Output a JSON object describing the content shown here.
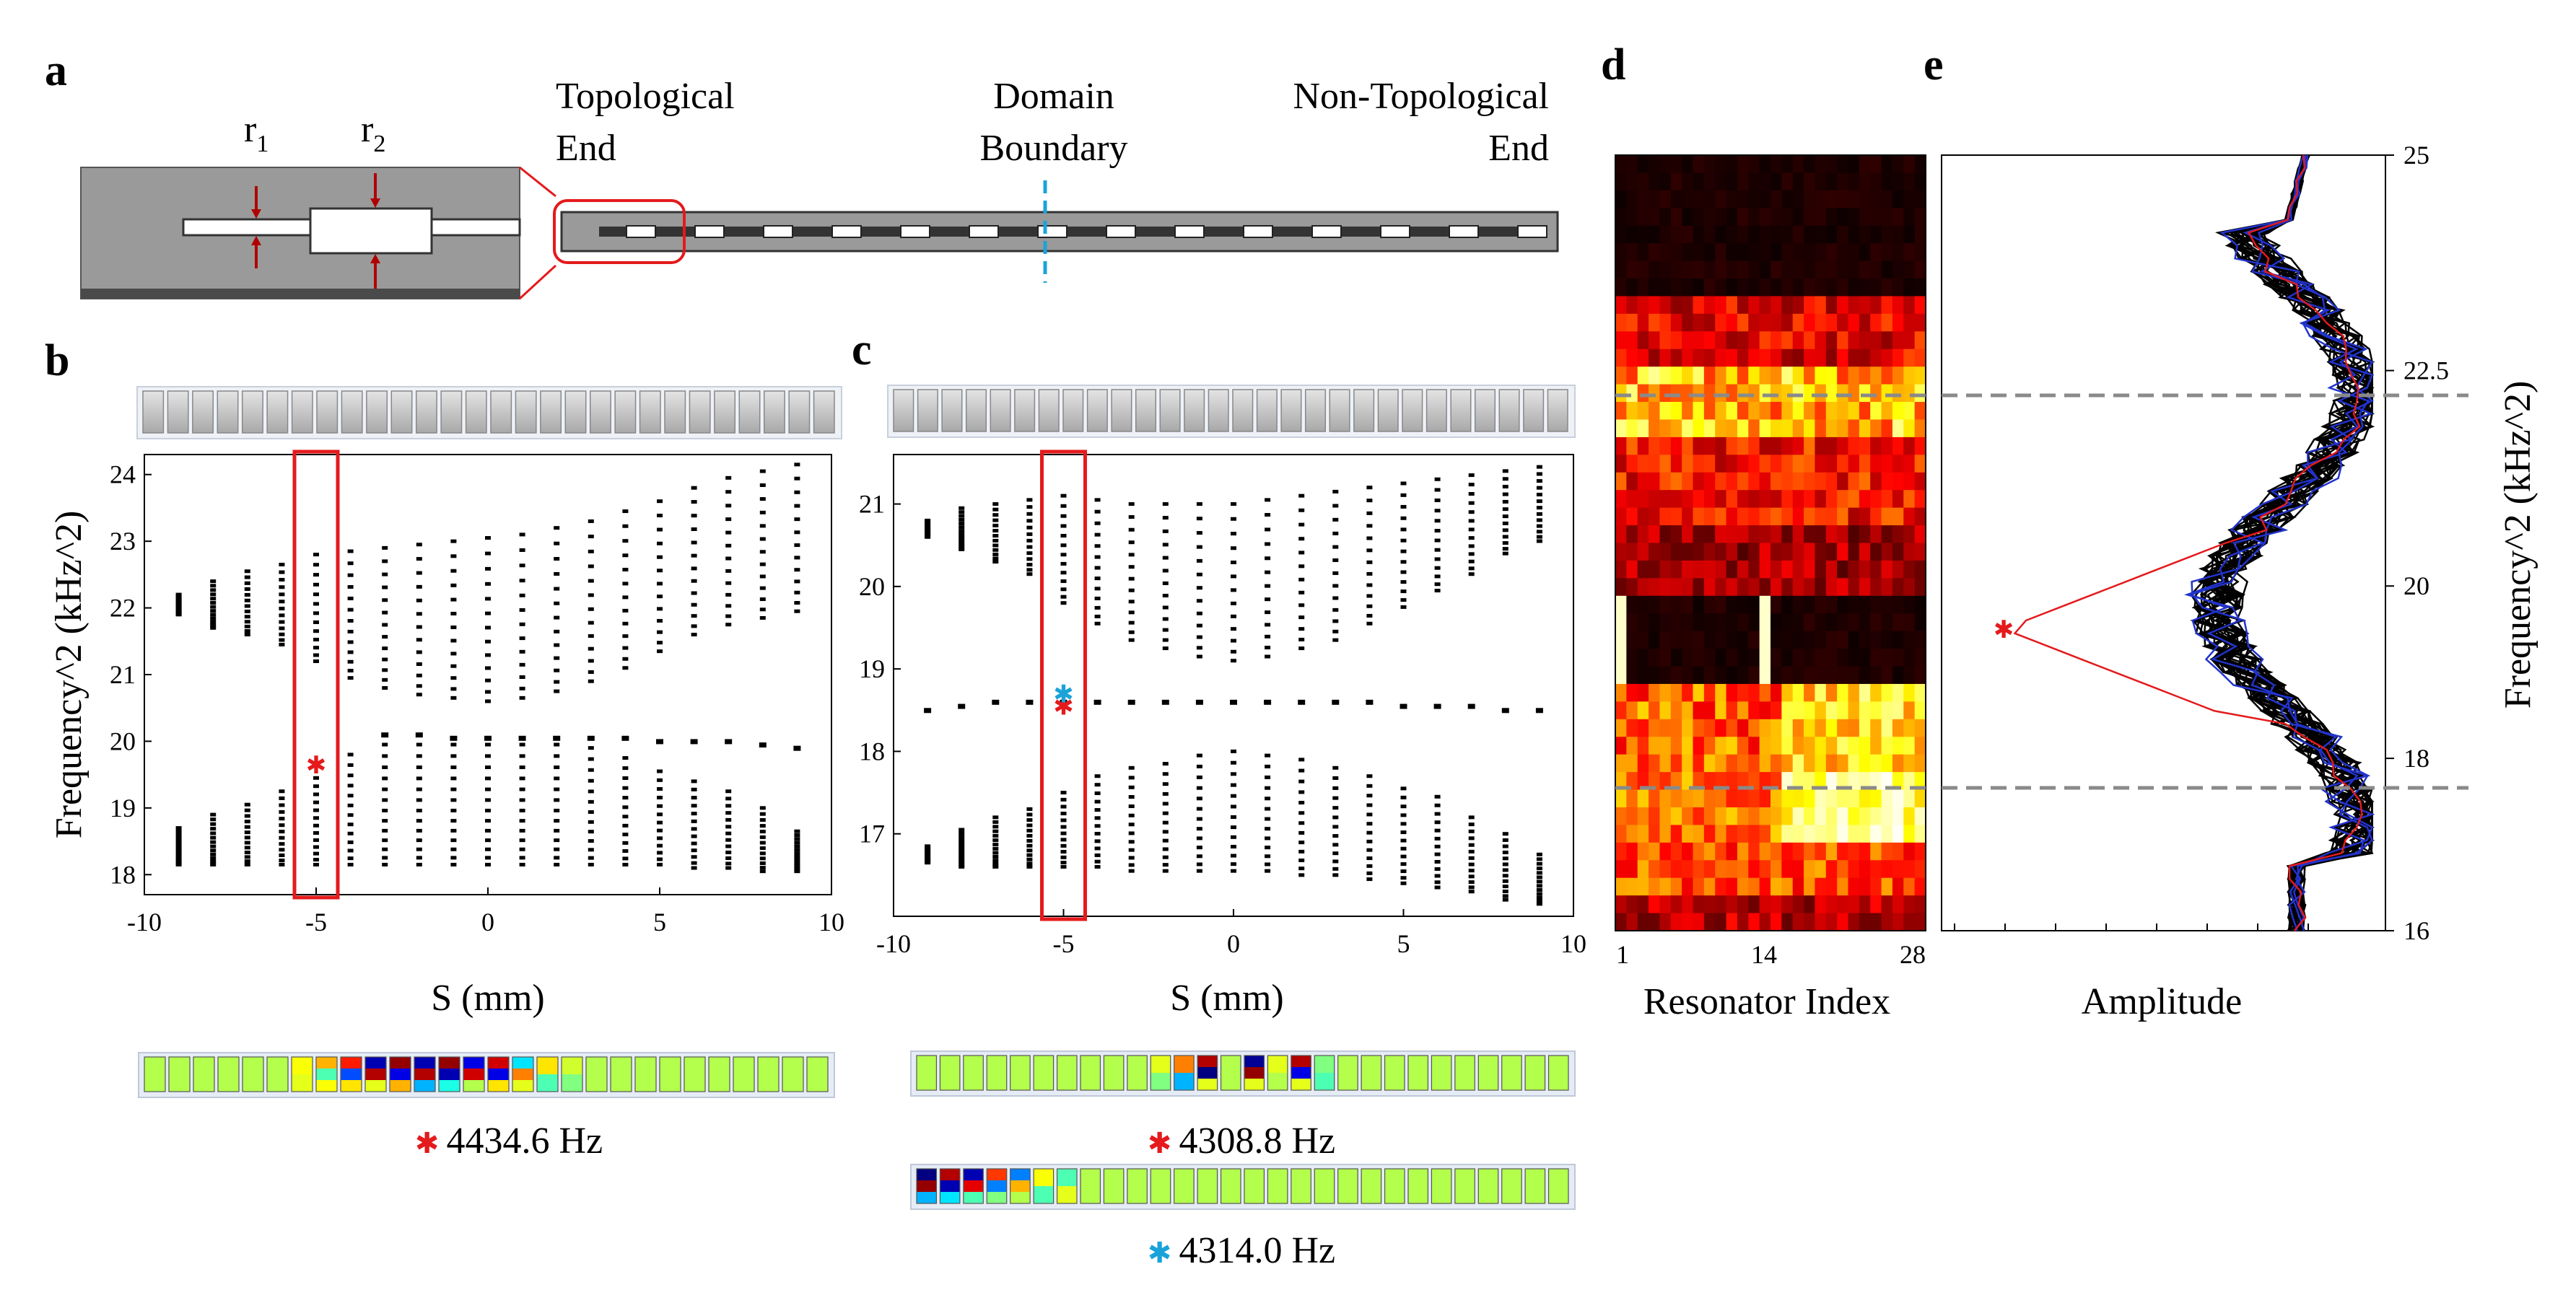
{
  "panels": {
    "a": "a",
    "b": "b",
    "c": "c",
    "d": "d",
    "e": "e"
  },
  "panel_a": {
    "r1_base": "r",
    "r1_sub": "1",
    "r2_base": "r",
    "r2_sub": "2",
    "topological_end": [
      "Topological",
      "End"
    ],
    "domain_boundary": [
      "Domain",
      "Boundary"
    ],
    "non_topological_end": [
      "Non-Topological",
      "End"
    ]
  },
  "panel_b": {
    "caption": "4434.6 Hz",
    "caption_marker_color": "#e41a1c"
  },
  "panel_c": {
    "caption_red": "4308.8 Hz",
    "caption_blue": "4314.0 Hz",
    "marker_red": "#e41a1c",
    "marker_blue": "#1ba3d9"
  },
  "panel_d": {
    "xlabel": "Resonator Index",
    "xticks": [
      "1",
      "14",
      "28"
    ],
    "colormap": "hot"
  },
  "panel_e": {
    "xlabel": "Amplitude",
    "ylabel": "Frequency^2 (kHz^2)",
    "yticks": [
      "25",
      "22.5",
      "20",
      "18",
      "16"
    ],
    "dashed_levels": [
      22,
      17.5
    ]
  },
  "chart_data": [
    {
      "id": "b",
      "type": "scatter",
      "title": "",
      "xlabel": "S  (mm)",
      "ylabel": "Frequency^2 (kHz^2)",
      "xlim": [
        -10,
        10
      ],
      "ylim": [
        17.7,
        24.3
      ],
      "xticks": [
        -10,
        -5,
        0,
        5,
        10
      ],
      "yticks": [
        18,
        19,
        20,
        21,
        22,
        23,
        24
      ],
      "highlight_column_x": -5,
      "marker_point": {
        "x": -5,
        "y": 19.65,
        "color": "#e41a1c"
      },
      "series": [
        {
          "x": [
            -9,
            -8,
            -7,
            -6,
            -5,
            -4,
            -3,
            -2,
            -1,
            0,
            1,
            2,
            3,
            4,
            5,
            6,
            7,
            8,
            9
          ],
          "lower_band": [
            [
              18.15,
              18.7
            ],
            [
              18.15,
              18.9
            ],
            [
              18.15,
              19.05
            ],
            [
              18.15,
              19.25
            ],
            [
              18.15,
              19.45
            ],
            [
              18.15,
              19.8
            ],
            [
              18.15,
              19.95
            ],
            [
              18.15,
              19.95
            ],
            [
              18.15,
              19.95
            ],
            [
              18.15,
              19.95
            ],
            [
              18.15,
              19.95
            ],
            [
              18.15,
              19.95
            ],
            [
              18.15,
              19.9
            ],
            [
              18.15,
              19.75
            ],
            [
              18.15,
              19.55
            ],
            [
              18.1,
              19.4
            ],
            [
              18.1,
              19.25
            ],
            [
              18.05,
              19.0
            ],
            [
              18.05,
              18.65
            ]
          ],
          "mid_state": [
            null,
            null,
            null,
            null,
            null,
            null,
            20.1,
            20.1,
            20.05,
            20.05,
            20.05,
            20.05,
            20.05,
            20.05,
            20.0,
            20.0,
            20.0,
            19.95,
            19.9
          ],
          "upper_band": [
            [
              21.9,
              22.2
            ],
            [
              21.7,
              22.4
            ],
            [
              21.6,
              22.55
            ],
            [
              21.45,
              22.65
            ],
            [
              21.2,
              22.8
            ],
            [
              20.95,
              22.85
            ],
            [
              20.8,
              22.9
            ],
            [
              20.7,
              22.95
            ],
            [
              20.65,
              23.0
            ],
            [
              20.6,
              23.05
            ],
            [
              20.65,
              23.1
            ],
            [
              20.75,
              23.2
            ],
            [
              20.9,
              23.3
            ],
            [
              21.1,
              23.45
            ],
            [
              21.35,
              23.6
            ],
            [
              21.6,
              23.8
            ],
            [
              21.75,
              23.95
            ],
            [
              21.85,
              24.05
            ],
            [
              21.95,
              24.15
            ]
          ]
        }
      ]
    },
    {
      "id": "c",
      "type": "scatter",
      "title": "",
      "xlabel": "S  (mm)",
      "ylabel": "",
      "xlim": [
        -10,
        10
      ],
      "ylim": [
        16,
        21.6
      ],
      "xticks": [
        -10,
        -5,
        0,
        5,
        10
      ],
      "yticks": [
        17,
        18,
        19,
        20,
        21
      ],
      "highlight_column_x": -5,
      "marker_points": [
        {
          "x": -5,
          "y": 18.55,
          "color": "#e41a1c"
        },
        {
          "x": -5,
          "y": 18.7,
          "color": "#1ba3d9"
        }
      ],
      "series": [
        {
          "x": [
            -9,
            -8,
            -7,
            -6,
            -5,
            -4,
            -3,
            -2,
            -1,
            0,
            1,
            2,
            3,
            4,
            5,
            6,
            7,
            8,
            9
          ],
          "lower_band": [
            [
              16.65,
              16.85
            ],
            [
              16.6,
              17.05
            ],
            [
              16.6,
              17.2
            ],
            [
              16.6,
              17.3
            ],
            [
              16.6,
              17.5
            ],
            [
              16.6,
              17.7
            ],
            [
              16.55,
              17.8
            ],
            [
              16.55,
              17.85
            ],
            [
              16.55,
              17.95
            ],
            [
              16.55,
              18.0
            ],
            [
              16.55,
              17.95
            ],
            [
              16.5,
              17.9
            ],
            [
              16.5,
              17.8
            ],
            [
              16.45,
              17.7
            ],
            [
              16.4,
              17.55
            ],
            [
              16.35,
              17.45
            ],
            [
              16.3,
              17.2
            ],
            [
              16.2,
              17.0
            ],
            [
              16.15,
              16.75
            ]
          ],
          "mid_state": [
            18.5,
            18.55,
            18.6,
            18.6,
            18.6,
            18.6,
            18.6,
            18.6,
            18.6,
            18.6,
            18.6,
            18.6,
            18.6,
            18.6,
            18.55,
            18.55,
            18.55,
            18.5,
            18.5
          ],
          "upper_band": [
            [
              20.6,
              20.8
            ],
            [
              20.45,
              20.95
            ],
            [
              20.3,
              21.0
            ],
            [
              20.15,
              21.05
            ],
            [
              19.8,
              21.1
            ],
            [
              19.55,
              21.05
            ],
            [
              19.35,
              21.0
            ],
            [
              19.25,
              21.0
            ],
            [
              19.15,
              21.0
            ],
            [
              19.1,
              21.0
            ],
            [
              19.15,
              21.05
            ],
            [
              19.25,
              21.1
            ],
            [
              19.35,
              21.15
            ],
            [
              19.55,
              21.2
            ],
            [
              19.75,
              21.25
            ],
            [
              19.95,
              21.3
            ],
            [
              20.15,
              21.35
            ],
            [
              20.4,
              21.4
            ],
            [
              20.55,
              21.45
            ]
          ]
        }
      ]
    },
    {
      "id": "e",
      "type": "line",
      "title": "",
      "xlabel": "Amplitude",
      "ylabel": "Frequency^2 (kHz^2)",
      "ylim": [
        16,
        25
      ],
      "series_colors": {
        "black_count": 28,
        "blue_count": 3,
        "red_count": 1
      },
      "red_peak": {
        "y": 19.5,
        "amplitude_fraction": 0.14
      }
    }
  ]
}
